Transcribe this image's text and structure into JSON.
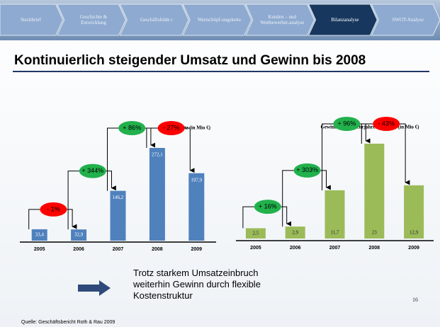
{
  "nav": {
    "items": [
      "Steckbrief",
      "Geschichte & Entwicklung",
      "Geschäftsfelde r",
      "Wertschöpf-ungskette",
      "Kunden – und Wettbewerber-analyse",
      "Bilanzanalyse",
      "SWOT-Analyse"
    ],
    "active": 5
  },
  "title": "Kontinuierlich steigender Umsatz und Gewinn bis 2008",
  "chart_data": [
    {
      "type": "bar",
      "title": "Umsatz (in Mio €)",
      "categories": [
        "2005",
        "2006",
        "2007",
        "2008",
        "2009"
      ],
      "values": [
        33.4,
        32.9,
        146.2,
        272.1,
        197.9
      ],
      "value_labels": [
        "33,4",
        "32,9",
        "146,2",
        "272,1",
        "197,9"
      ],
      "color": "#4f81bd",
      "annotations": [
        {
          "label": "- 1%",
          "color": "#ff0000"
        },
        {
          "label": "+ 344%",
          "color": "#22b14c"
        },
        {
          "label": "+ 86%",
          "color": "#22b14c"
        },
        {
          "label": "- 27%",
          "color": "#ff0000"
        }
      ]
    },
    {
      "type": "bar",
      "title": "Gewinn in der Mehrjahresübersicht (in Mio €)",
      "categories": [
        "2005",
        "2006",
        "2007",
        "2008",
        "2009"
      ],
      "values": [
        2.5,
        2.9,
        11.7,
        23,
        12.9
      ],
      "value_labels": [
        "2,5",
        "2,9",
        "11,7",
        "23",
        "12,9"
      ],
      "color": "#9bbb59",
      "annotations": [
        {
          "label": "+ 16%",
          "color": "#22b14c"
        },
        {
          "label": "+ 303%",
          "color": "#22b14c"
        },
        {
          "label": "+ 96%",
          "color": "#22b14c"
        },
        {
          "label": "- 43%",
          "color": "#ff0000"
        }
      ]
    }
  ],
  "note": "Trotz starkem Umsatzeinbruch weiterhin Gewinn durch flexible Kostenstruktur",
  "source": "Quelle: Geschäftsbericht Roth & Rau 2009",
  "page_number": "16"
}
